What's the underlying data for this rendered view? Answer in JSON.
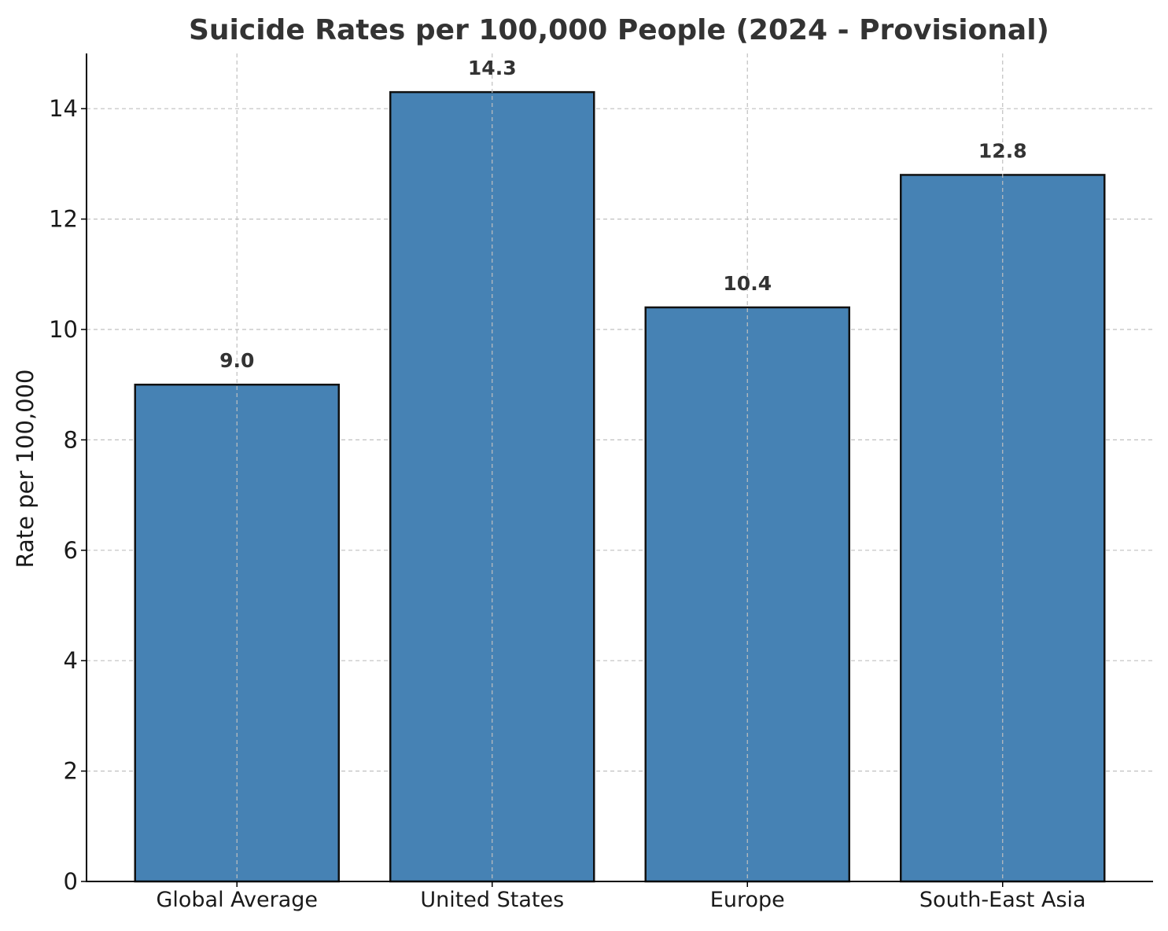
{
  "chart_data": {
    "type": "bar",
    "title": "Suicide Rates per 100,000 People (2024 - Provisional)",
    "xlabel": "",
    "ylabel": "Rate per 100,000",
    "categories": [
      "Global Average",
      "United States",
      "Europe",
      "South-East Asia"
    ],
    "values": [
      9.0,
      14.3,
      10.4,
      12.8
    ],
    "value_labels": [
      "9.0",
      "14.3",
      "10.4",
      "12.8"
    ],
    "ylim": [
      0,
      15
    ],
    "yticks": [
      0,
      2,
      4,
      6,
      8,
      10,
      12,
      14
    ],
    "ytick_labels": [
      "0",
      "2",
      "4",
      "6",
      "8",
      "10",
      "12",
      "14"
    ],
    "grid": true,
    "bar_color": "#4682b4",
    "edge_color": "#111111"
  }
}
